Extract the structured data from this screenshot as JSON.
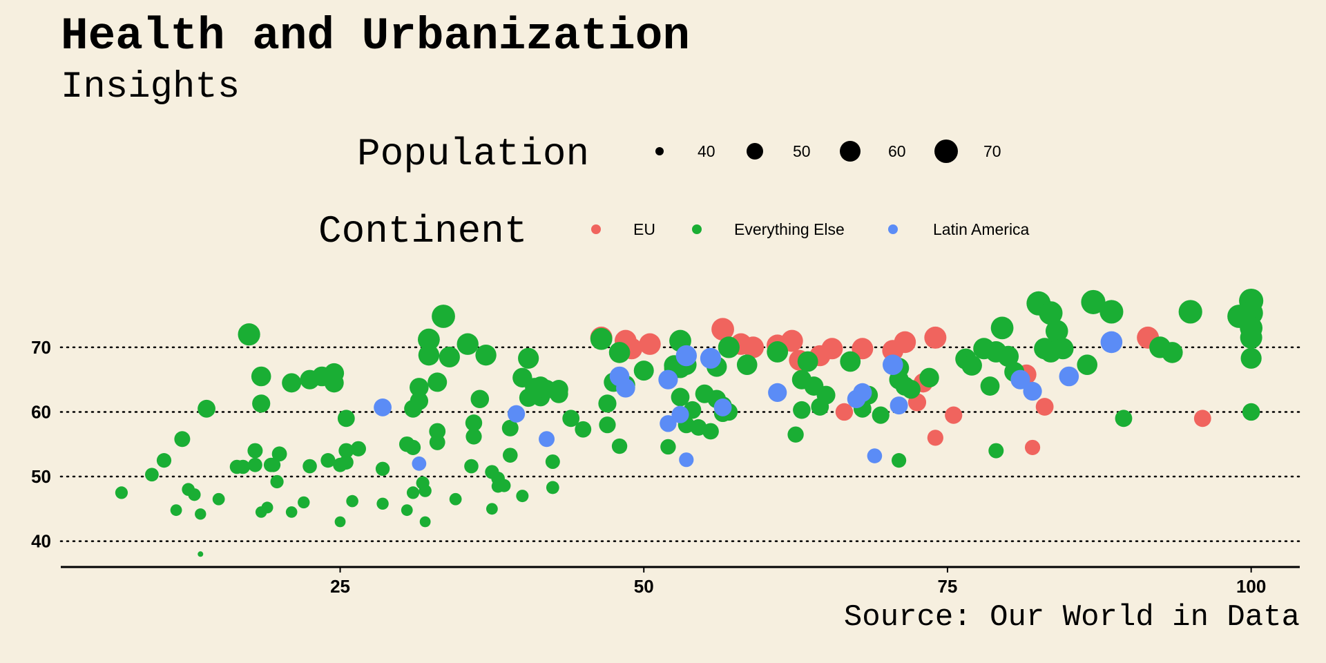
{
  "chart_data": {
    "type": "scatter",
    "title": "Health and Urbanization",
    "subtitle": "Insights",
    "caption": "Source: Our World in Data",
    "xlabel": "",
    "ylabel": "",
    "xlim": [
      2,
      104
    ],
    "ylim": [
      36,
      81
    ],
    "x_ticks": [
      25,
      50,
      75,
      100
    ],
    "y_ticks": [
      40,
      50,
      60,
      70
    ],
    "grid": "dotted horizontal lines at y ticks",
    "size_legend": {
      "title": "Population",
      "entries": [
        {
          "label": "40",
          "value": 40
        },
        {
          "label": "50",
          "value": 50
        },
        {
          "label": "60",
          "value": 60
        },
        {
          "label": "70",
          "value": 70
        }
      ]
    },
    "color_legend": {
      "title": "Continent",
      "entries": [
        {
          "label": "EU",
          "color": "#f0645e"
        },
        {
          "label": "Everything Else",
          "color": "#1aae34"
        },
        {
          "label": "Latin America",
          "color": "#5b8cf6"
        }
      ]
    },
    "series": [
      {
        "key": "eu",
        "color": "#f0645e",
        "points": [
          [
            46.5,
            71.5
          ],
          [
            48.5,
            71
          ],
          [
            49,
            69.8
          ],
          [
            50.5,
            70.5
          ],
          [
            56.5,
            72.8
          ],
          [
            58,
            70.5
          ],
          [
            59,
            70
          ],
          [
            61,
            70.3
          ],
          [
            62.2,
            71
          ],
          [
            62.8,
            68
          ],
          [
            64.5,
            68.7
          ],
          [
            65.5,
            69.8
          ],
          [
            66.5,
            60
          ],
          [
            68,
            69.8
          ],
          [
            70.5,
            69.5
          ],
          [
            71.5,
            70.8
          ],
          [
            72.5,
            61.5
          ],
          [
            73,
            64.5
          ],
          [
            74,
            71.5
          ],
          [
            74,
            56
          ],
          [
            75.5,
            59.5
          ],
          [
            81.5,
            65.8
          ],
          [
            82,
            54.5
          ],
          [
            83,
            60.8
          ],
          [
            91.5,
            71.5
          ],
          [
            96,
            59
          ]
        ]
      },
      {
        "key": "other",
        "color": "#1aae34",
        "points": [
          [
            7,
            47.5
          ],
          [
            9.5,
            50.3
          ],
          [
            10.5,
            52.5
          ],
          [
            11.5,
            44.8
          ],
          [
            12,
            55.8
          ],
          [
            12.5,
            48
          ],
          [
            13,
            47.2
          ],
          [
            13.5,
            44.2
          ],
          [
            13.5,
            38
          ],
          [
            14,
            60.5
          ],
          [
            15,
            46.5
          ],
          [
            16.5,
            51.5
          ],
          [
            17,
            51.5
          ],
          [
            17.5,
            72
          ],
          [
            18,
            54
          ],
          [
            18,
            51.8
          ],
          [
            18.5,
            65.5
          ],
          [
            18.5,
            61.3
          ],
          [
            18.5,
            44.5
          ],
          [
            19,
            45.2
          ],
          [
            19.3,
            51.8
          ],
          [
            19.5,
            51.8
          ],
          [
            19.8,
            49.2
          ],
          [
            20,
            53.5
          ],
          [
            21,
            64.5
          ],
          [
            21,
            44.5
          ],
          [
            22,
            46
          ],
          [
            22.5,
            65
          ],
          [
            22.5,
            51.6
          ],
          [
            23.5,
            65.5
          ],
          [
            24,
            52.5
          ],
          [
            24.5,
            64.5
          ],
          [
            24.5,
            66
          ],
          [
            25,
            51.8
          ],
          [
            25,
            43
          ],
          [
            25.5,
            59
          ],
          [
            25.5,
            52.2
          ],
          [
            25.5,
            54
          ],
          [
            26,
            46.2
          ],
          [
            26.5,
            54.3
          ],
          [
            28.5,
            51.2
          ],
          [
            28.5,
            45.8
          ],
          [
            30.5,
            55
          ],
          [
            30.5,
            44.8
          ],
          [
            31,
            54.5
          ],
          [
            31,
            47.5
          ],
          [
            31,
            60.5
          ],
          [
            31.5,
            63.8
          ],
          [
            31.5,
            61.7
          ],
          [
            31.8,
            49
          ],
          [
            32,
            47.8
          ],
          [
            32,
            43
          ],
          [
            32.3,
            71.2
          ],
          [
            32.3,
            68.8
          ],
          [
            33,
            64.6
          ],
          [
            33,
            57
          ],
          [
            33,
            55.3
          ],
          [
            33.5,
            74.8
          ],
          [
            34,
            68.5
          ],
          [
            34.5,
            46.5
          ],
          [
            35.5,
            70.5
          ],
          [
            35.8,
            51.6
          ],
          [
            36,
            58.3
          ],
          [
            36,
            56.2
          ],
          [
            36.5,
            62
          ],
          [
            37,
            68.8
          ],
          [
            37.5,
            50.7
          ],
          [
            37.5,
            45
          ],
          [
            38,
            49.7
          ],
          [
            38,
            48.5
          ],
          [
            38.5,
            48.6
          ],
          [
            39,
            53.3
          ],
          [
            39,
            57.5
          ],
          [
            40,
            65.3
          ],
          [
            40,
            47
          ],
          [
            40.5,
            68.3
          ],
          [
            40.5,
            62.2
          ],
          [
            41,
            63.8
          ],
          [
            41.5,
            64
          ],
          [
            41.5,
            62.3
          ],
          [
            42,
            63.5
          ],
          [
            42.5,
            52.3
          ],
          [
            42.5,
            48.3
          ],
          [
            43,
            62.8
          ],
          [
            43,
            63.5
          ],
          [
            44,
            59
          ],
          [
            45,
            57.3
          ],
          [
            46.5,
            71.3
          ],
          [
            47,
            58
          ],
          [
            47,
            61.3
          ],
          [
            47.5,
            64.6
          ],
          [
            48,
            69.2
          ],
          [
            48,
            54.7
          ],
          [
            48.5,
            64.2
          ],
          [
            48.5,
            63.8
          ],
          [
            50,
            66.4
          ],
          [
            52,
            54.6
          ],
          [
            52.5,
            66.7
          ],
          [
            52.5,
            67.2
          ],
          [
            53,
            71
          ],
          [
            53,
            66.8
          ],
          [
            53,
            62.3
          ],
          [
            53.5,
            58
          ],
          [
            53.5,
            67.3
          ],
          [
            54,
            60.3
          ],
          [
            54.5,
            57.6
          ],
          [
            55,
            62.8
          ],
          [
            55.5,
            57
          ],
          [
            56,
            67
          ],
          [
            56,
            62
          ],
          [
            56.5,
            61
          ],
          [
            56.5,
            59.8
          ],
          [
            57,
            60
          ],
          [
            57,
            70
          ],
          [
            58.5,
            67.3
          ],
          [
            61,
            69.3
          ],
          [
            62.5,
            56.5
          ],
          [
            63,
            65
          ],
          [
            63,
            60.3
          ],
          [
            63.5,
            67.8
          ],
          [
            64,
            64
          ],
          [
            64.5,
            60.8
          ],
          [
            65,
            62.6
          ],
          [
            67,
            67.8
          ],
          [
            68,
            60.5
          ],
          [
            68.5,
            62.6
          ],
          [
            69.5,
            59.5
          ],
          [
            71,
            66.8
          ],
          [
            71,
            65
          ],
          [
            71,
            52.5
          ],
          [
            71.5,
            64
          ],
          [
            72,
            63.5
          ],
          [
            73.5,
            65.3
          ],
          [
            76.5,
            68.2
          ],
          [
            77,
            67.2
          ],
          [
            78,
            69.8
          ],
          [
            78.5,
            64
          ],
          [
            79,
            69.3
          ],
          [
            79,
            54
          ],
          [
            79.5,
            73
          ],
          [
            80,
            68.6
          ],
          [
            80.5,
            66.2
          ],
          [
            82.5,
            76.8
          ],
          [
            83,
            69.8
          ],
          [
            83.5,
            75.3
          ],
          [
            83.5,
            69.3
          ],
          [
            84,
            72.5
          ],
          [
            84.5,
            69.8
          ],
          [
            86.5,
            67.3
          ],
          [
            87,
            77
          ],
          [
            88.5,
            75.5
          ],
          [
            89.5,
            59
          ],
          [
            92.5,
            70
          ],
          [
            93.5,
            69.2
          ],
          [
            95,
            75.5
          ],
          [
            99,
            74.8
          ],
          [
            100,
            77.2
          ],
          [
            100,
            75.3
          ],
          [
            100,
            73
          ],
          [
            100,
            71.5
          ],
          [
            100,
            68.3
          ],
          [
            100,
            60
          ]
        ]
      },
      {
        "key": "latam",
        "color": "#5b8cf6",
        "points": [
          [
            28.5,
            60.7
          ],
          [
            31.5,
            52
          ],
          [
            39.5,
            59.7
          ],
          [
            42,
            55.8
          ],
          [
            48,
            65.5
          ],
          [
            48.5,
            63.7
          ],
          [
            52,
            58.2
          ],
          [
            52,
            65
          ],
          [
            53,
            59.6
          ],
          [
            53.5,
            68.7
          ],
          [
            53.5,
            52.6
          ],
          [
            55.5,
            68.3
          ],
          [
            56.5,
            60.7
          ],
          [
            61,
            63
          ],
          [
            67.5,
            62
          ],
          [
            68,
            63
          ],
          [
            69,
            53.2
          ],
          [
            70.5,
            67.3
          ],
          [
            71,
            61
          ],
          [
            81,
            65
          ],
          [
            82,
            63.2
          ],
          [
            85,
            65.5
          ],
          [
            88.5,
            70.8
          ]
        ]
      }
    ]
  }
}
